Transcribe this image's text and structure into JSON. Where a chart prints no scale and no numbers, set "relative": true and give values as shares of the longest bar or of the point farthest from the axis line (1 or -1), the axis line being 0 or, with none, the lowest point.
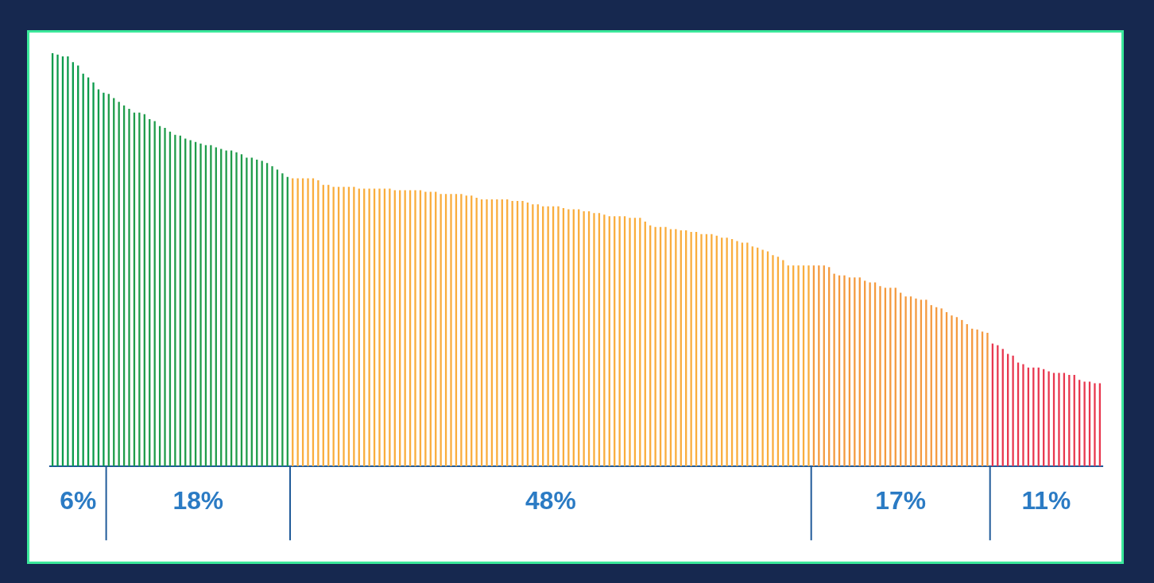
{
  "chart_data": {
    "type": "bar",
    "relative": true,
    "legend": false,
    "categories": [
      null,
      null,
      null,
      null,
      null,
      null,
      null,
      null,
      null,
      null,
      null,
      null,
      null,
      null,
      null,
      null,
      null,
      null,
      null,
      null,
      null,
      null,
      null,
      null,
      null,
      null,
      null,
      null,
      null,
      null,
      null,
      null,
      null,
      null,
      null,
      null,
      null,
      null,
      null,
      null,
      null,
      null,
      null,
      null,
      null,
      null,
      null,
      null,
      null,
      null,
      null,
      null,
      null,
      null,
      null,
      null,
      null,
      null,
      null,
      null,
      null,
      null,
      null,
      null,
      null,
      null,
      null,
      null,
      null,
      null,
      null,
      null,
      null,
      null,
      null,
      null,
      null,
      null,
      null,
      null,
      null,
      null,
      null,
      null,
      null,
      null,
      null,
      null,
      null,
      null,
      null,
      null,
      null,
      null,
      null,
      null,
      null,
      null,
      null,
      null,
      null,
      null,
      null,
      null,
      null,
      null,
      null,
      null,
      null,
      null,
      null,
      null,
      null,
      null,
      null,
      null,
      null,
      null,
      null,
      null,
      null,
      null,
      null,
      null,
      null,
      null,
      null,
      null,
      null,
      null,
      null,
      null,
      null,
      null,
      null,
      null,
      null,
      null,
      null,
      null,
      null,
      null,
      null,
      null,
      null,
      null,
      null,
      null,
      null,
      null,
      null,
      null,
      null,
      null,
      null,
      null,
      null,
      null,
      null,
      null,
      null,
      null,
      null,
      null,
      null,
      null,
      null,
      null,
      null,
      null,
      null,
      null,
      null,
      null,
      null,
      null,
      null,
      null,
      null,
      null,
      null,
      null,
      null,
      null,
      null,
      null,
      null,
      null,
      null,
      null,
      null,
      null,
      null,
      null,
      null,
      null,
      null,
      null,
      null,
      null,
      null,
      null,
      null,
      null,
      null,
      null
    ],
    "values": [
      1.0,
      0.996,
      0.992,
      0.992,
      0.978,
      0.97,
      0.95,
      0.941,
      0.929,
      0.912,
      0.904,
      0.901,
      0.891,
      0.882,
      0.873,
      0.865,
      0.856,
      0.856,
      0.852,
      0.84,
      0.835,
      0.823,
      0.819,
      0.81,
      0.802,
      0.8,
      0.793,
      0.789,
      0.785,
      0.781,
      0.777,
      0.777,
      0.772,
      0.768,
      0.764,
      0.764,
      0.76,
      0.755,
      0.747,
      0.747,
      0.742,
      0.739,
      0.734,
      0.726,
      0.718,
      0.709,
      0.7,
      0.697,
      0.697,
      0.697,
      0.697,
      0.697,
      0.692,
      0.681,
      0.681,
      0.676,
      0.676,
      0.676,
      0.676,
      0.676,
      0.672,
      0.672,
      0.672,
      0.672,
      0.672,
      0.672,
      0.672,
      0.668,
      0.668,
      0.668,
      0.668,
      0.668,
      0.668,
      0.664,
      0.664,
      0.664,
      0.659,
      0.659,
      0.659,
      0.659,
      0.659,
      0.655,
      0.655,
      0.65,
      0.646,
      0.646,
      0.646,
      0.646,
      0.646,
      0.646,
      0.642,
      0.642,
      0.642,
      0.638,
      0.634,
      0.634,
      0.629,
      0.629,
      0.629,
      0.629,
      0.625,
      0.622,
      0.622,
      0.622,
      0.617,
      0.617,
      0.613,
      0.613,
      0.609,
      0.605,
      0.605,
      0.605,
      0.605,
      0.601,
      0.601,
      0.601,
      0.592,
      0.583,
      0.579,
      0.579,
      0.579,
      0.574,
      0.574,
      0.571,
      0.571,
      0.567,
      0.567,
      0.562,
      0.562,
      0.562,
      0.558,
      0.553,
      0.553,
      0.55,
      0.545,
      0.541,
      0.541,
      0.532,
      0.529,
      0.524,
      0.52,
      0.511,
      0.507,
      0.499,
      0.486,
      0.486,
      0.486,
      0.486,
      0.486,
      0.486,
      0.486,
      0.486,
      0.482,
      0.466,
      0.462,
      0.462,
      0.457,
      0.457,
      0.457,
      0.449,
      0.445,
      0.445,
      0.436,
      0.432,
      0.432,
      0.432,
      0.42,
      0.411,
      0.411,
      0.406,
      0.403,
      0.403,
      0.39,
      0.385,
      0.382,
      0.373,
      0.365,
      0.361,
      0.354,
      0.344,
      0.333,
      0.331,
      0.326,
      0.323,
      0.297,
      0.293,
      0.284,
      0.272,
      0.268,
      0.251,
      0.247,
      0.239,
      0.239,
      0.239,
      0.235,
      0.23,
      0.226,
      0.226,
      0.226,
      0.221,
      0.221,
      0.209,
      0.205,
      0.205,
      0.201,
      0.201
    ],
    "colors": [
      "#0b9b4b",
      "#0b9b4b",
      "#0b9b4b",
      "#0b9b4b",
      "#0b9b4b",
      "#0b9b4b",
      "#0b9b4b",
      "#0b9b4b",
      "#0b9b4b",
      "#0b9b4b",
      "#0b9b4b",
      "#1f9c4a",
      "#1f9c4a",
      "#1f9c4a",
      "#1f9c4a",
      "#1f9c4a",
      "#1f9c4a",
      "#1f9c4a",
      "#1f9c4a",
      "#1f9c4a",
      "#1f9c4a",
      "#1f9c4a",
      "#1f9c4a",
      "#1f9c4a",
      "#1f9c4a",
      "#1f9c4a",
      "#1f9c4a",
      "#1f9c4a",
      "#1f9c4a",
      "#1f9c4a",
      "#1f9c4a",
      "#1f9c4a",
      "#1f9c4a",
      "#1f9c4a",
      "#1f9c4a",
      "#1f9c4a",
      "#1f9c4a",
      "#1f9c4a",
      "#1f9c4a",
      "#1f9c4a",
      "#1f9c4a",
      "#1f9c4a",
      "#1f9c4a",
      "#1f9c4a",
      "#1f9c4a",
      "#1f9c4a",
      "#1f9c4a",
      "#f9ad3d",
      "#f9ad3d",
      "#f9ad3d",
      "#f9ad3d",
      "#f9ad3d",
      "#f9ad3d",
      "#f9ad3d",
      "#f9ad3d",
      "#f9ad3d",
      "#f9ad3d",
      "#f9ad3d",
      "#f9ad3d",
      "#f9ad3d",
      "#f9ad3d",
      "#f9ad3d",
      "#f9ad3d",
      "#f9ad3d",
      "#f9ad3d",
      "#f9ad3d",
      "#f9ad3d",
      "#f9ad3d",
      "#f9ad3d",
      "#f9ad3d",
      "#f9ad3d",
      "#f9ad3d",
      "#f9ad3d",
      "#f9ad3d",
      "#f9ad3d",
      "#f9ad3d",
      "#f9ad3d",
      "#f9ad3d",
      "#f9ad3d",
      "#f9ad3d",
      "#f9ad3d",
      "#f9ad3d",
      "#f9ad3d",
      "#f9ad3d",
      "#f9ad3d",
      "#f9ad3d",
      "#f9ad3d",
      "#f9ad3d",
      "#f9ad3d",
      "#f9ad3d",
      "#f9ad3d",
      "#f9ad3d",
      "#f9ad3d",
      "#f9ad3d",
      "#f9ad3d",
      "#f9ad3d",
      "#f9ad3d",
      "#f9ad3d",
      "#f9ad3d",
      "#f9ad3d",
      "#f9ad3d",
      "#f9ad3d",
      "#f9ad3d",
      "#f9ad3d",
      "#f9ad3d",
      "#f9ad3d",
      "#f9ad3d",
      "#f9ad3d",
      "#f9ad3d",
      "#f9ad3d",
      "#f9ad3d",
      "#f9ad3d",
      "#f9ad3d",
      "#f9ad3d",
      "#f9ad3d",
      "#f9ad3d",
      "#f9ad3d",
      "#f9ad3d",
      "#f9ad3d",
      "#f9ad3d",
      "#f9ad3d",
      "#f9ad3d",
      "#f9ad3d",
      "#f9ad3d",
      "#f9ad3d",
      "#f9ad3d",
      "#f9ad3d",
      "#f9ad3d",
      "#f9ad3d",
      "#f9ad3d",
      "#f9ad3d",
      "#f9ad3d",
      "#f9ad3d",
      "#f9ad3d",
      "#f9ad3d",
      "#f9ad3d",
      "#f9ad3d",
      "#f9ad3d",
      "#f9ad3d",
      "#f9ad3d",
      "#f9ad3d",
      "#f9ad3d",
      "#f9ad3d",
      "#f9ad3d",
      "#f9ad3d",
      "#f9ad3d",
      "#f9ad3d",
      "#f9ad3d",
      "#f9ad3d",
      "#f49a3f",
      "#f49a3f",
      "#f49a3f",
      "#f49a3f",
      "#f49a3f",
      "#f49a3f",
      "#f49a3f",
      "#f49a3f",
      "#f49a3f",
      "#f49a3f",
      "#f49a3f",
      "#f49a3f",
      "#f49a3f",
      "#f49a3f",
      "#f49a3f",
      "#f49a3f",
      "#f49a3f",
      "#f49a3f",
      "#f49a3f",
      "#f49a3f",
      "#f49a3f",
      "#f49a3f",
      "#f49a3f",
      "#f49a3f",
      "#f49a3f",
      "#f49a3f",
      "#f49a3f",
      "#f49a3f",
      "#f49a3f",
      "#f49a3f",
      "#f49a3f",
      "#f49a3f",
      "#f49a3f",
      "#f49a3f",
      "#f49a3f",
      "#e8384f",
      "#e8384f",
      "#e8384f",
      "#e8384f",
      "#e8384f",
      "#e8384f",
      "#e8384f",
      "#e8384f",
      "#e8384f",
      "#e8384f",
      "#e8384f",
      "#e8384f",
      "#e8384f",
      "#e8384f",
      "#e8384f",
      "#e8384f",
      "#e8384f",
      "#e8384f",
      "#e8384f",
      "#e8384f",
      "#e8384f",
      "#e8384f"
    ],
    "annotations": [
      "6%",
      "18%",
      "48%",
      "17%",
      "11%"
    ]
  }
}
